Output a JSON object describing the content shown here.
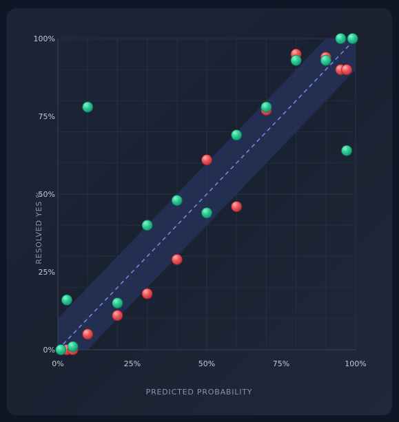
{
  "chart_data": {
    "type": "scatter",
    "xlabel": "PREDICTED PROBABILITY",
    "ylabel": "RESOLVED YES %",
    "xlim": [
      0,
      100
    ],
    "ylim": [
      0,
      100
    ],
    "x_ticks": [
      "0%",
      "25%",
      "50%",
      "75%",
      "100%"
    ],
    "y_ticks": [
      "0%",
      "25%",
      "50%",
      "75%",
      "100%"
    ],
    "grid": true,
    "reference_line": "y = x (dashed)",
    "confidence_band": 10,
    "colors": {
      "green": "#2ecf98",
      "red": "#f05a5e",
      "band": "#2b3a6b",
      "diagonal": "#7b83e0",
      "grid": "#2a3446"
    },
    "series": [
      {
        "color": "red",
        "points": [
          {
            "x": 3,
            "y": 0
          },
          {
            "x": 5,
            "y": 0
          },
          {
            "x": 10,
            "y": 5
          },
          {
            "x": 20,
            "y": 11
          },
          {
            "x": 30,
            "y": 18
          },
          {
            "x": 40,
            "y": 29
          },
          {
            "x": 50,
            "y": 61
          },
          {
            "x": 60,
            "y": 46
          },
          {
            "x": 70,
            "y": 77
          },
          {
            "x": 80,
            "y": 95
          },
          {
            "x": 90,
            "y": 94
          },
          {
            "x": 95,
            "y": 90
          },
          {
            "x": 97,
            "y": 90
          }
        ]
      },
      {
        "color": "green",
        "points": [
          {
            "x": 1,
            "y": 0
          },
          {
            "x": 3,
            "y": 16
          },
          {
            "x": 5,
            "y": 1
          },
          {
            "x": 10,
            "y": 78
          },
          {
            "x": 20,
            "y": 15
          },
          {
            "x": 30,
            "y": 40
          },
          {
            "x": 40,
            "y": 48
          },
          {
            "x": 50,
            "y": 44
          },
          {
            "x": 60,
            "y": 69
          },
          {
            "x": 70,
            "y": 78
          },
          {
            "x": 80,
            "y": 93
          },
          {
            "x": 90,
            "y": 93
          },
          {
            "x": 95,
            "y": 100
          },
          {
            "x": 97,
            "y": 64
          },
          {
            "x": 99,
            "y": 100
          }
        ]
      }
    ]
  }
}
